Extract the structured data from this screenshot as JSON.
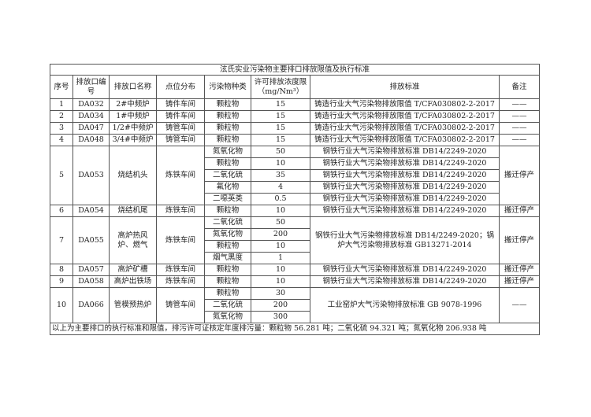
{
  "title": "泫氏实业污染物主要排口排放限值及执行标准",
  "headers": {
    "seq": "序号",
    "outlet_no": "排放口编号",
    "outlet_name": "排放口名称",
    "location": "点位分布",
    "pollutant": "污染物种类",
    "limit": "许可排放浓度限（mg/Nm³）",
    "standard": "排放标准",
    "remark": "备注"
  },
  "rows": [
    {
      "seq": "1",
      "no": "DA032",
      "name": "2#中频炉",
      "loc": "铸件车间",
      "items": [
        {
          "p": "颗粒物",
          "v": "15",
          "s": "铸造行业大气污染物排放限值 T/CFA030802-2-2017"
        }
      ],
      "remark": "——"
    },
    {
      "seq": "2",
      "no": "DA034",
      "name": "1#中频炉",
      "loc": "铸件车间",
      "items": [
        {
          "p": "颗粒物",
          "v": "15",
          "s": "铸造行业大气污染物排放限值 T/CFA030802-2-2017"
        }
      ],
      "remark": "——"
    },
    {
      "seq": "3",
      "no": "DA047",
      "name": "1/2#中频炉",
      "loc": "铸管车间",
      "items": [
        {
          "p": "颗粒物",
          "v": "15",
          "s": "铸造行业大气污染物排放限值 T/CFA030802-2-2017"
        }
      ],
      "remark": "——"
    },
    {
      "seq": "4",
      "no": "DA048",
      "name": "3/4#中频炉",
      "loc": "铸管车间",
      "items": [
        {
          "p": "颗粒物",
          "v": "15",
          "s": "铸造行业大气污染物排放限值 T/CFA030802-2-2017"
        }
      ],
      "remark": "——"
    },
    {
      "seq": "5",
      "no": "DA053",
      "name": "烧结机头",
      "loc": "炼铁车间",
      "items": [
        {
          "p": "氮氧化物",
          "v": "50",
          "s": "钢铁行业大气污染物排放标准 DB14/2249-2020"
        },
        {
          "p": "颗粒物",
          "v": "10",
          "s": "钢铁行业大气污染物排放标准 DB14/2249-2020"
        },
        {
          "p": "二氧化硫",
          "v": "35",
          "s": "钢铁行业大气污染物排放标准 DB14/2249-2020"
        },
        {
          "p": "氟化物",
          "v": "4",
          "s": "钢铁行业大气污染物排放标准 DB14/2249-2020"
        },
        {
          "p": "二噁英类",
          "v": "0.5",
          "s": "钢铁行业大气污染物排放标准 DB14/2249-2020"
        }
      ],
      "remark": "搬迁停产"
    },
    {
      "seq": "6",
      "no": "DA054",
      "name": "烧结机尾",
      "loc": "炼铁车间",
      "items": [
        {
          "p": "颗粒物",
          "v": "10",
          "s": "钢铁行业大气污染物排放标准 DB14/2249-2020"
        }
      ],
      "remark": "搬迁停产"
    },
    {
      "seq": "7",
      "no": "DA055",
      "name": "高炉热风炉、燃气",
      "loc": "炼铁车间",
      "items": [
        {
          "p": "二氧化硫",
          "v": "50"
        },
        {
          "p": "氮氧化物",
          "v": "200"
        },
        {
          "p": "颗粒物",
          "v": "10"
        },
        {
          "p": "烟气黑度",
          "v": "1"
        }
      ],
      "standard_merged": "钢铁行业大气污染物排放标准 DB14/2249-2020；锅炉大气污染物排放标准 GB13271-2014",
      "remark": "搬迁停产"
    },
    {
      "seq": "8",
      "no": "DA057",
      "name": "高炉矿槽",
      "loc": "炼铁车间",
      "items": [
        {
          "p": "颗粒物",
          "v": "10",
          "s": "钢铁行业大气污染物排放标准 DB14/2249-2020"
        }
      ],
      "remark": "搬迁停产"
    },
    {
      "seq": "9",
      "no": "DA058",
      "name": "高炉出铁场",
      "loc": "炼铁车间",
      "items": [
        {
          "p": "颗粒物",
          "v": "10",
          "s": "钢铁行业大气污染物排放标准 DB14/2249-2020"
        }
      ],
      "remark": "搬迁停产"
    },
    {
      "seq": "10",
      "no": "DA066",
      "name": "管模预热炉",
      "loc": "铸管车间",
      "items": [
        {
          "p": "颗粒物",
          "v": "30"
        },
        {
          "p": "二氧化硫",
          "v": "200"
        },
        {
          "p": "氮氧化物",
          "v": "300"
        }
      ],
      "standard_merged": "工业窑炉大气污染物排放标准 GB 9078-1996",
      "remark": "——"
    }
  ],
  "footer": "以上为主要排口的执行标准和限值，排污许可证核定年度排污量：颗粒物 56.281 吨；二氧化硫 94.321 吨；氮氧化物 206.938 吨"
}
